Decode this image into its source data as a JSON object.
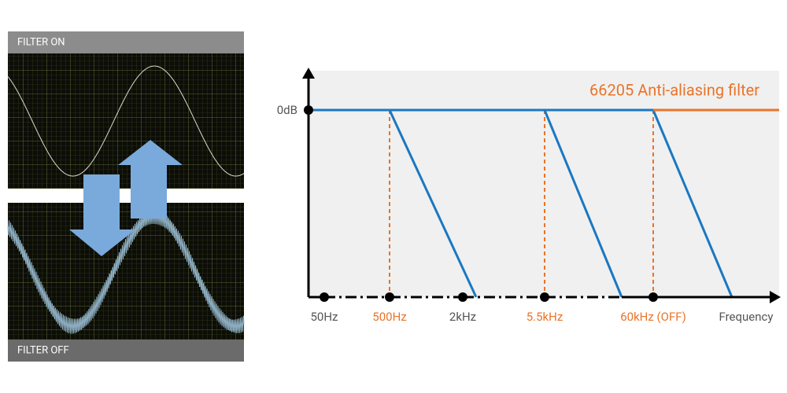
{
  "scope": {
    "top_label": "FILTER ON",
    "bottom_label": "FILTER OFF"
  },
  "response": {
    "y_label": "0dB",
    "filter_label": "66205 Anti-aliasing filter",
    "x_labels": [
      "50Hz",
      "500Hz",
      "2kHz",
      "5.5kHz",
      "60kHz (OFF)"
    ],
    "x_axis_label": "Frequency"
  }
}
